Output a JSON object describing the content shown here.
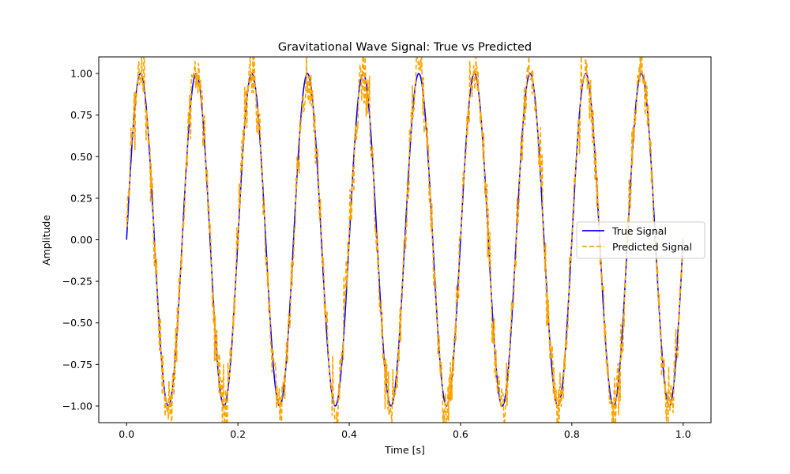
{
  "chart_data": {
    "type": "line",
    "title": "Gravitational Wave Signal: True vs Predicted",
    "xlabel": "Time [s]",
    "ylabel": "Amplitude",
    "xlim": [
      -0.05,
      1.05
    ],
    "ylim": [
      -1.1,
      1.1
    ],
    "xticks": [
      0.0,
      0.2,
      0.4,
      0.6,
      0.8,
      1.0
    ],
    "xtick_labels": [
      "0.0",
      "0.2",
      "0.4",
      "0.6",
      "0.8",
      "1.0"
    ],
    "yticks": [
      -1.0,
      -0.75,
      -0.5,
      -0.25,
      0.0,
      0.25,
      0.5,
      0.75,
      1.0
    ],
    "ytick_labels": [
      "−1.00",
      "−0.75",
      "−0.50",
      "−0.25",
      "0.00",
      "0.25",
      "0.50",
      "0.75",
      "1.00"
    ],
    "grid": false,
    "legend_position": "center-right",
    "x_range": [
      0.0,
      1.0
    ],
    "sample_count": 1000,
    "series": [
      {
        "name": "True Signal",
        "color": "#0000ff",
        "style": "solid",
        "function": "sin(2*pi*10*t)"
      },
      {
        "name": "Predicted Signal",
        "color": "#ffa500",
        "style": "dashed",
        "function": "sin(2*pi*10*t) + noise",
        "noise_std": 0.1
      }
    ]
  }
}
